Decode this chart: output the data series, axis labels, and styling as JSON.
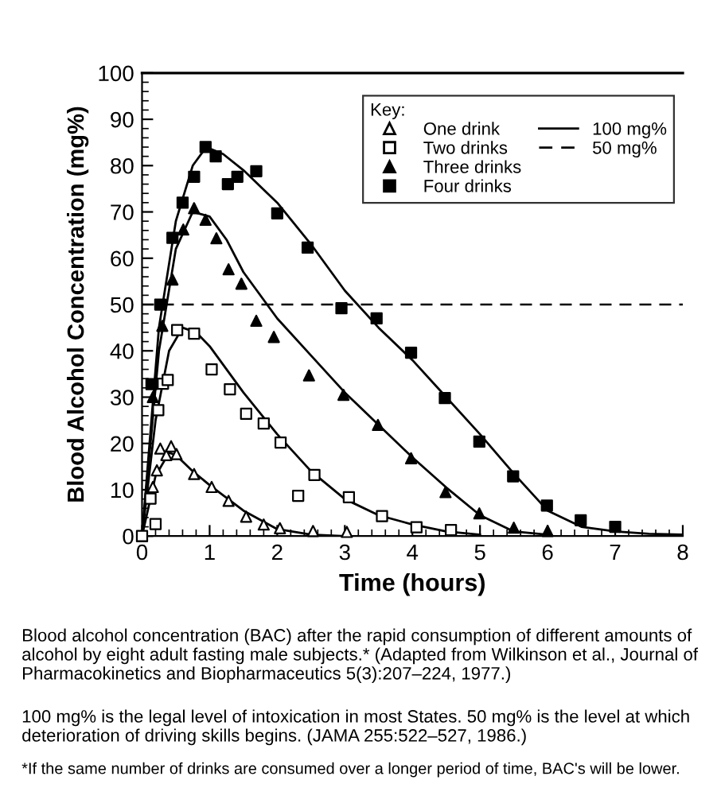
{
  "chart_data": {
    "type": "scatter",
    "xlabel": "Time (hours)",
    "ylabel": "Blood Alcohol Concentration (mg%)",
    "legend_title": "Key:",
    "legend": "top right",
    "grid": false,
    "xlim": [
      0,
      8
    ],
    "xticks": [
      0,
      1,
      2,
      3,
      4,
      5,
      6,
      7,
      8
    ],
    "ylim": [
      0,
      100
    ],
    "yticks": [
      0,
      10,
      20,
      30,
      40,
      50,
      60,
      70,
      80,
      90,
      100
    ],
    "series": [
      {
        "name": "One drink",
        "color": "#ffffff",
        "marker": "triangle",
        "x": [
          0,
          0.16,
          0.22,
          0.27,
          0.36,
          0.43,
          0.51,
          0.77,
          1.03,
          1.28,
          1.54,
          1.8,
          2.04,
          2.53,
          3.03
        ],
        "values": [
          0,
          10.6,
          14.2,
          18.9,
          17.5,
          19.4,
          17.7,
          13.4,
          10.6,
          7.6,
          4.2,
          2.5,
          1.7,
          1.1,
          0.9
        ]
      },
      {
        "name": "Two drinks",
        "color": "#ffffff",
        "marker": "square",
        "x": [
          0,
          0.125,
          0.2,
          0.24,
          0.31,
          0.38,
          0.52,
          0.77,
          1.03,
          1.3,
          1.54,
          1.8,
          2.05,
          2.31,
          2.55,
          3.06,
          3.55,
          4.06,
          4.57
        ],
        "values": [
          0,
          8.1,
          2.6,
          27.2,
          32.9,
          33.7,
          44.5,
          43.7,
          36,
          31.7,
          26.4,
          24.3,
          20.2,
          8.7,
          13.2,
          8.4,
          4.3,
          1.9,
          1.3
        ]
      },
      {
        "name": "Three drinks",
        "color": "#000000",
        "marker": "triangle",
        "x": [
          0.16,
          0.3,
          0.45,
          0.61,
          0.77,
          0.94,
          1.1,
          1.28,
          1.47,
          1.69,
          1.95,
          2.47,
          2.98,
          3.49,
          3.98,
          4.49,
          4.99,
          5.5,
          6.0
        ],
        "values": [
          30,
          45.4,
          55.4,
          66.2,
          70.8,
          68.3,
          64.3,
          57.6,
          54.5,
          46.5,
          43,
          34.7,
          30.5,
          24,
          16.8,
          9.5,
          4.9,
          1.8,
          1.1
        ]
      },
      {
        "name": "Four drinks",
        "color": "#000000",
        "marker": "square",
        "x": [
          0.14,
          0.27,
          0.45,
          0.6,
          0.77,
          0.94,
          1.09,
          1.27,
          1.41,
          1.69,
          2.0,
          2.45,
          2.95,
          3.47,
          3.98,
          4.48,
          4.99,
          5.49,
          5.99,
          6.49,
          7.0
        ],
        "values": [
          32.8,
          50,
          64.4,
          72,
          77.6,
          84,
          82,
          76,
          77.6,
          78.8,
          69.7,
          62.3,
          49.2,
          47,
          39.6,
          29.8,
          20.4,
          12.9,
          6.6,
          3.4,
          2.0
        ]
      },
      {
        "type": "line",
        "color": "#000000",
        "marker": "none",
        "line_style": "solid",
        "x": [
          0,
          0.2,
          0.4,
          0.5,
          0.75,
          1,
          1.5,
          2,
          2.5,
          3
        ],
        "values": [
          0,
          13,
          18,
          17.5,
          14,
          11,
          5.5,
          1.5,
          0.3,
          0
        ]
      },
      {
        "type": "line",
        "color": "#000000",
        "marker": "none",
        "line_style": "solid",
        "x": [
          0,
          0.2,
          0.4,
          0.6,
          0.8,
          1.0,
          1.5,
          2,
          2.5,
          3,
          3.5,
          4,
          4.5,
          5
        ],
        "values": [
          0,
          25,
          40,
          45,
          44,
          41,
          31,
          22,
          14,
          8,
          4.5,
          2.5,
          1,
          0.3
        ]
      },
      {
        "type": "line",
        "color": "#000000",
        "marker": "none",
        "line_style": "solid",
        "x": [
          0,
          0.25,
          0.5,
          0.75,
          1,
          1.25,
          1.5,
          2,
          2.5,
          3,
          3.5,
          4,
          4.5,
          5,
          5.5,
          6
        ],
        "values": [
          0,
          40,
          62,
          70,
          69,
          64,
          57,
          47,
          39,
          31,
          24,
          17,
          10.5,
          4.5,
          1,
          0.3
        ]
      },
      {
        "type": "line",
        "color": "#000000",
        "marker": "none",
        "line_style": "solid",
        "x": [
          0,
          0.25,
          0.5,
          0.75,
          0.95,
          1.2,
          1.5,
          2,
          2.5,
          3,
          3.5,
          4,
          4.5,
          5,
          5.5,
          6,
          6.5,
          7,
          7.5,
          8
        ],
        "values": [
          0,
          45,
          68,
          80,
          84,
          82.5,
          79,
          72,
          63,
          53,
          45,
          38,
          30,
          22,
          13.5,
          5.5,
          2,
          1,
          0.5,
          0.3
        ]
      }
    ],
    "ref_lines": [
      {
        "axis": "y",
        "value": 100,
        "label": "100 mg%",
        "color": "#000000",
        "line_style": "solid"
      },
      {
        "axis": "y",
        "value": 50,
        "label": "50 mg%",
        "color": "#000000",
        "line_style": "dashed"
      }
    ],
    "annotations": [
      "Blood alcohol concentration (BAC) after the rapid consumption of different amounts of alcohol by eight adult fasting male subjects.* (Adapted from Wilkinson et al., Journal of Pharmacokinetics and Biopharmaceutics 5(3):207–224, 1977.)",
      "100 mg% is the legal level of intoxication in most States. 50 mg% is the level at which deterioration of driving skills begins. (JAMA 255:522–527, 1986.)",
      "*If the same number of drinks are consumed over a longer period of time, BAC's will be lower."
    ]
  }
}
